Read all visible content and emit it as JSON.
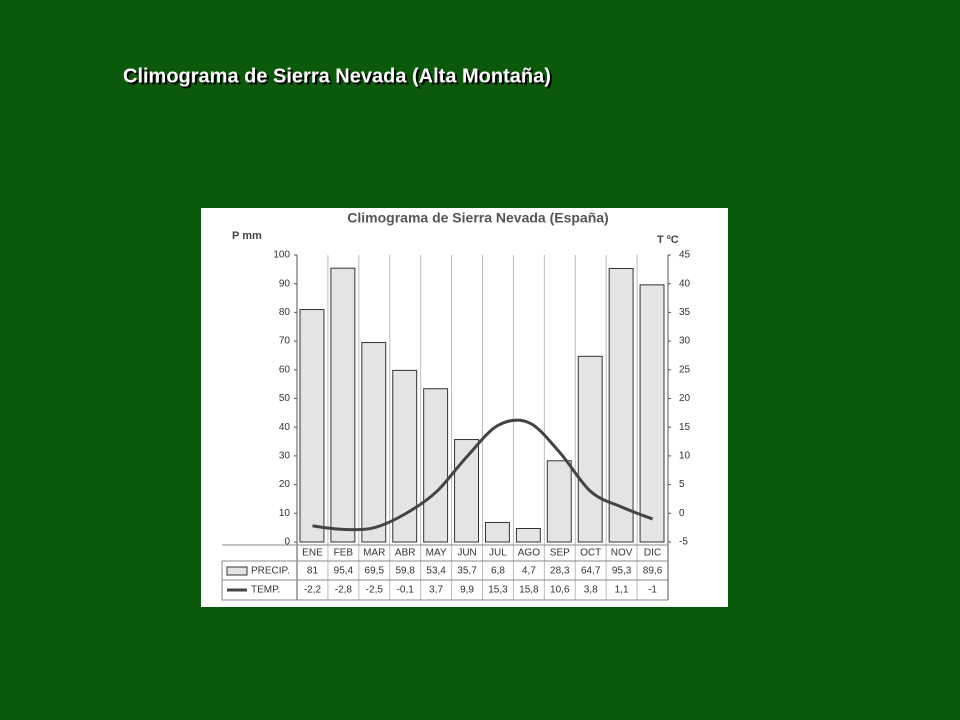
{
  "slide_title": "Climograma de Sierra Nevada (Alta Montaña)",
  "chart_data": {
    "type": "bar",
    "title": "Climograma de Sierra Nevada (España)",
    "ylabel": "P mm",
    "y2label": "T ºC",
    "categories": [
      "ENE",
      "FEB",
      "MAR",
      "ABR",
      "MAY",
      "JUN",
      "JUL",
      "AGO",
      "SEP",
      "OCT",
      "NOV",
      "DIC"
    ],
    "series": [
      {
        "name": "PRECIP.",
        "type": "bar",
        "color": "#e4e4e4",
        "values": [
          81,
          95.4,
          69.5,
          59.8,
          53.4,
          35.7,
          6.8,
          4.7,
          28.3,
          64.7,
          95.3,
          89.6
        ],
        "value_labels": [
          "81",
          "95,4",
          "69,5",
          "59,8",
          "53,4",
          "35,7",
          "6,8",
          "4,7",
          "28,3",
          "64,7",
          "95,3",
          "89,6"
        ]
      },
      {
        "name": "TEMP.",
        "type": "line",
        "axis": "y2",
        "color": "#444444",
        "values": [
          -2.2,
          -2.8,
          -2.5,
          -0.1,
          3.7,
          9.9,
          15.3,
          15.8,
          10.6,
          3.8,
          1.1,
          -1
        ],
        "value_labels": [
          "-2,2",
          "-2,8",
          "-2,5",
          "-0,1",
          "3,7",
          "9,9",
          "15,3",
          "15,8",
          "10,6",
          "3,8",
          "1,1",
          "-1"
        ]
      }
    ],
    "ylim": [
      0,
      100
    ],
    "yticks": [
      0,
      10,
      20,
      30,
      40,
      50,
      60,
      70,
      80,
      90,
      100
    ],
    "y2lim": [
      -5,
      45
    ],
    "y2ticks": [
      -5,
      0,
      5,
      10,
      15,
      20,
      25,
      30,
      35,
      40,
      45
    ],
    "grid": false
  }
}
